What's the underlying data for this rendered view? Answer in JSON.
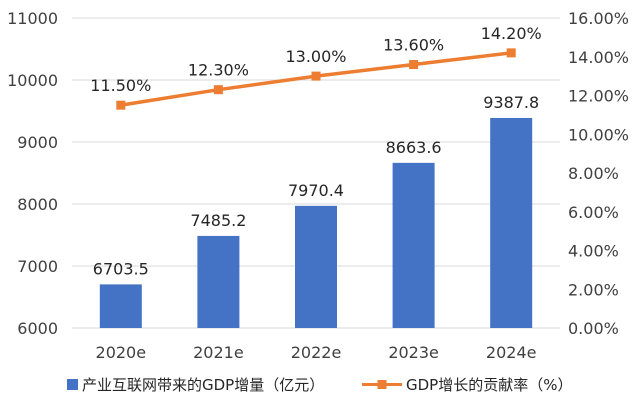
{
  "chart_data": {
    "type": "bar+line",
    "categories": [
      "2020e",
      "2021e",
      "2022e",
      "2023e",
      "2024e"
    ],
    "series": [
      {
        "name": "产业互联网带来的GDP增量（亿元）",
        "type": "bar",
        "axis": "left",
        "color": "#4472C4",
        "values": [
          6703.5,
          7485.2,
          7970.4,
          8663.6,
          9387.8
        ],
        "labels": [
          "6703.5",
          "7485.2",
          "7970.4",
          "8663.6",
          "9387.8"
        ]
      },
      {
        "name": "GDP增长的贡献率（%）",
        "type": "line",
        "axis": "right",
        "color": "#ED7D31",
        "values": [
          11.5,
          12.3,
          13.0,
          13.6,
          14.2
        ],
        "labels": [
          "11.50%",
          "12.30%",
          "13.00%",
          "13.60%",
          "14.20%"
        ]
      }
    ],
    "y_left": {
      "ylim": [
        6000,
        11000
      ],
      "ticks": [
        6000,
        7000,
        8000,
        9000,
        10000,
        11000
      ],
      "tick_labels": [
        "6000",
        "7000",
        "8000",
        "9000",
        "10000",
        "11000"
      ]
    },
    "y_right": {
      "ylim": [
        0,
        16
      ],
      "ticks": [
        0,
        2,
        4,
        6,
        8,
        10,
        12,
        14,
        16
      ],
      "tick_labels": [
        "0.00%",
        "2.00%",
        "4.00%",
        "6.00%",
        "8.00%",
        "10.00%",
        "12.00%",
        "14.00%",
        "16.00%"
      ]
    },
    "grid": true,
    "legend_position": "bottom"
  }
}
